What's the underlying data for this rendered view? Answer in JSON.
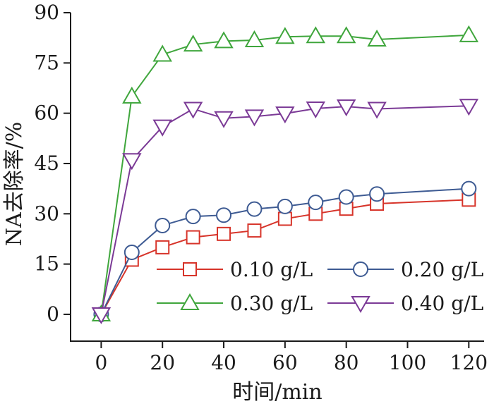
{
  "chart_data": {
    "type": "line",
    "xlabel": "时间/min",
    "ylabel": "NA去除率/%",
    "xlim": [
      -10,
      125
    ],
    "ylim": [
      -8,
      90
    ],
    "xticks": [
      0,
      20,
      40,
      60,
      80,
      100,
      120
    ],
    "yticks": [
      0,
      15,
      30,
      45,
      60,
      75,
      90
    ],
    "grid": false,
    "legend_position": "bottom-right",
    "series": [
      {
        "name": "0.10 g/L",
        "color": "#d7342a",
        "marker": "square",
        "x": [
          0,
          10,
          20,
          30,
          40,
          50,
          60,
          70,
          80,
          90,
          120
        ],
        "y": [
          0,
          16.3,
          20,
          23,
          24,
          25,
          28.5,
          30,
          31.5,
          33,
          34.2
        ]
      },
      {
        "name": "0.20 g/L",
        "color": "#3e5b93",
        "marker": "circle",
        "x": [
          0,
          10,
          20,
          30,
          40,
          50,
          60,
          70,
          80,
          90,
          120
        ],
        "y": [
          0,
          18.5,
          26.5,
          29.2,
          29.6,
          31.4,
          32.2,
          33.4,
          35,
          35.9,
          37.5
        ]
      },
      {
        "name": "0.30 g/L",
        "color": "#3fa63c",
        "marker": "triangle-up",
        "x": [
          0,
          10,
          20,
          30,
          40,
          50,
          60,
          70,
          80,
          90,
          120
        ],
        "y": [
          0,
          65,
          77.5,
          80.5,
          81.5,
          81.8,
          82.8,
          83,
          83,
          82,
          83.3
        ]
      },
      {
        "name": "0.40 g/L",
        "color": "#7b3a96",
        "marker": "triangle-down",
        "x": [
          0,
          10,
          20,
          30,
          40,
          50,
          60,
          70,
          80,
          90,
          120
        ],
        "y": [
          0,
          46,
          56,
          61.3,
          58.5,
          59,
          59.9,
          61.4,
          62,
          61.3,
          62.2
        ]
      }
    ]
  }
}
